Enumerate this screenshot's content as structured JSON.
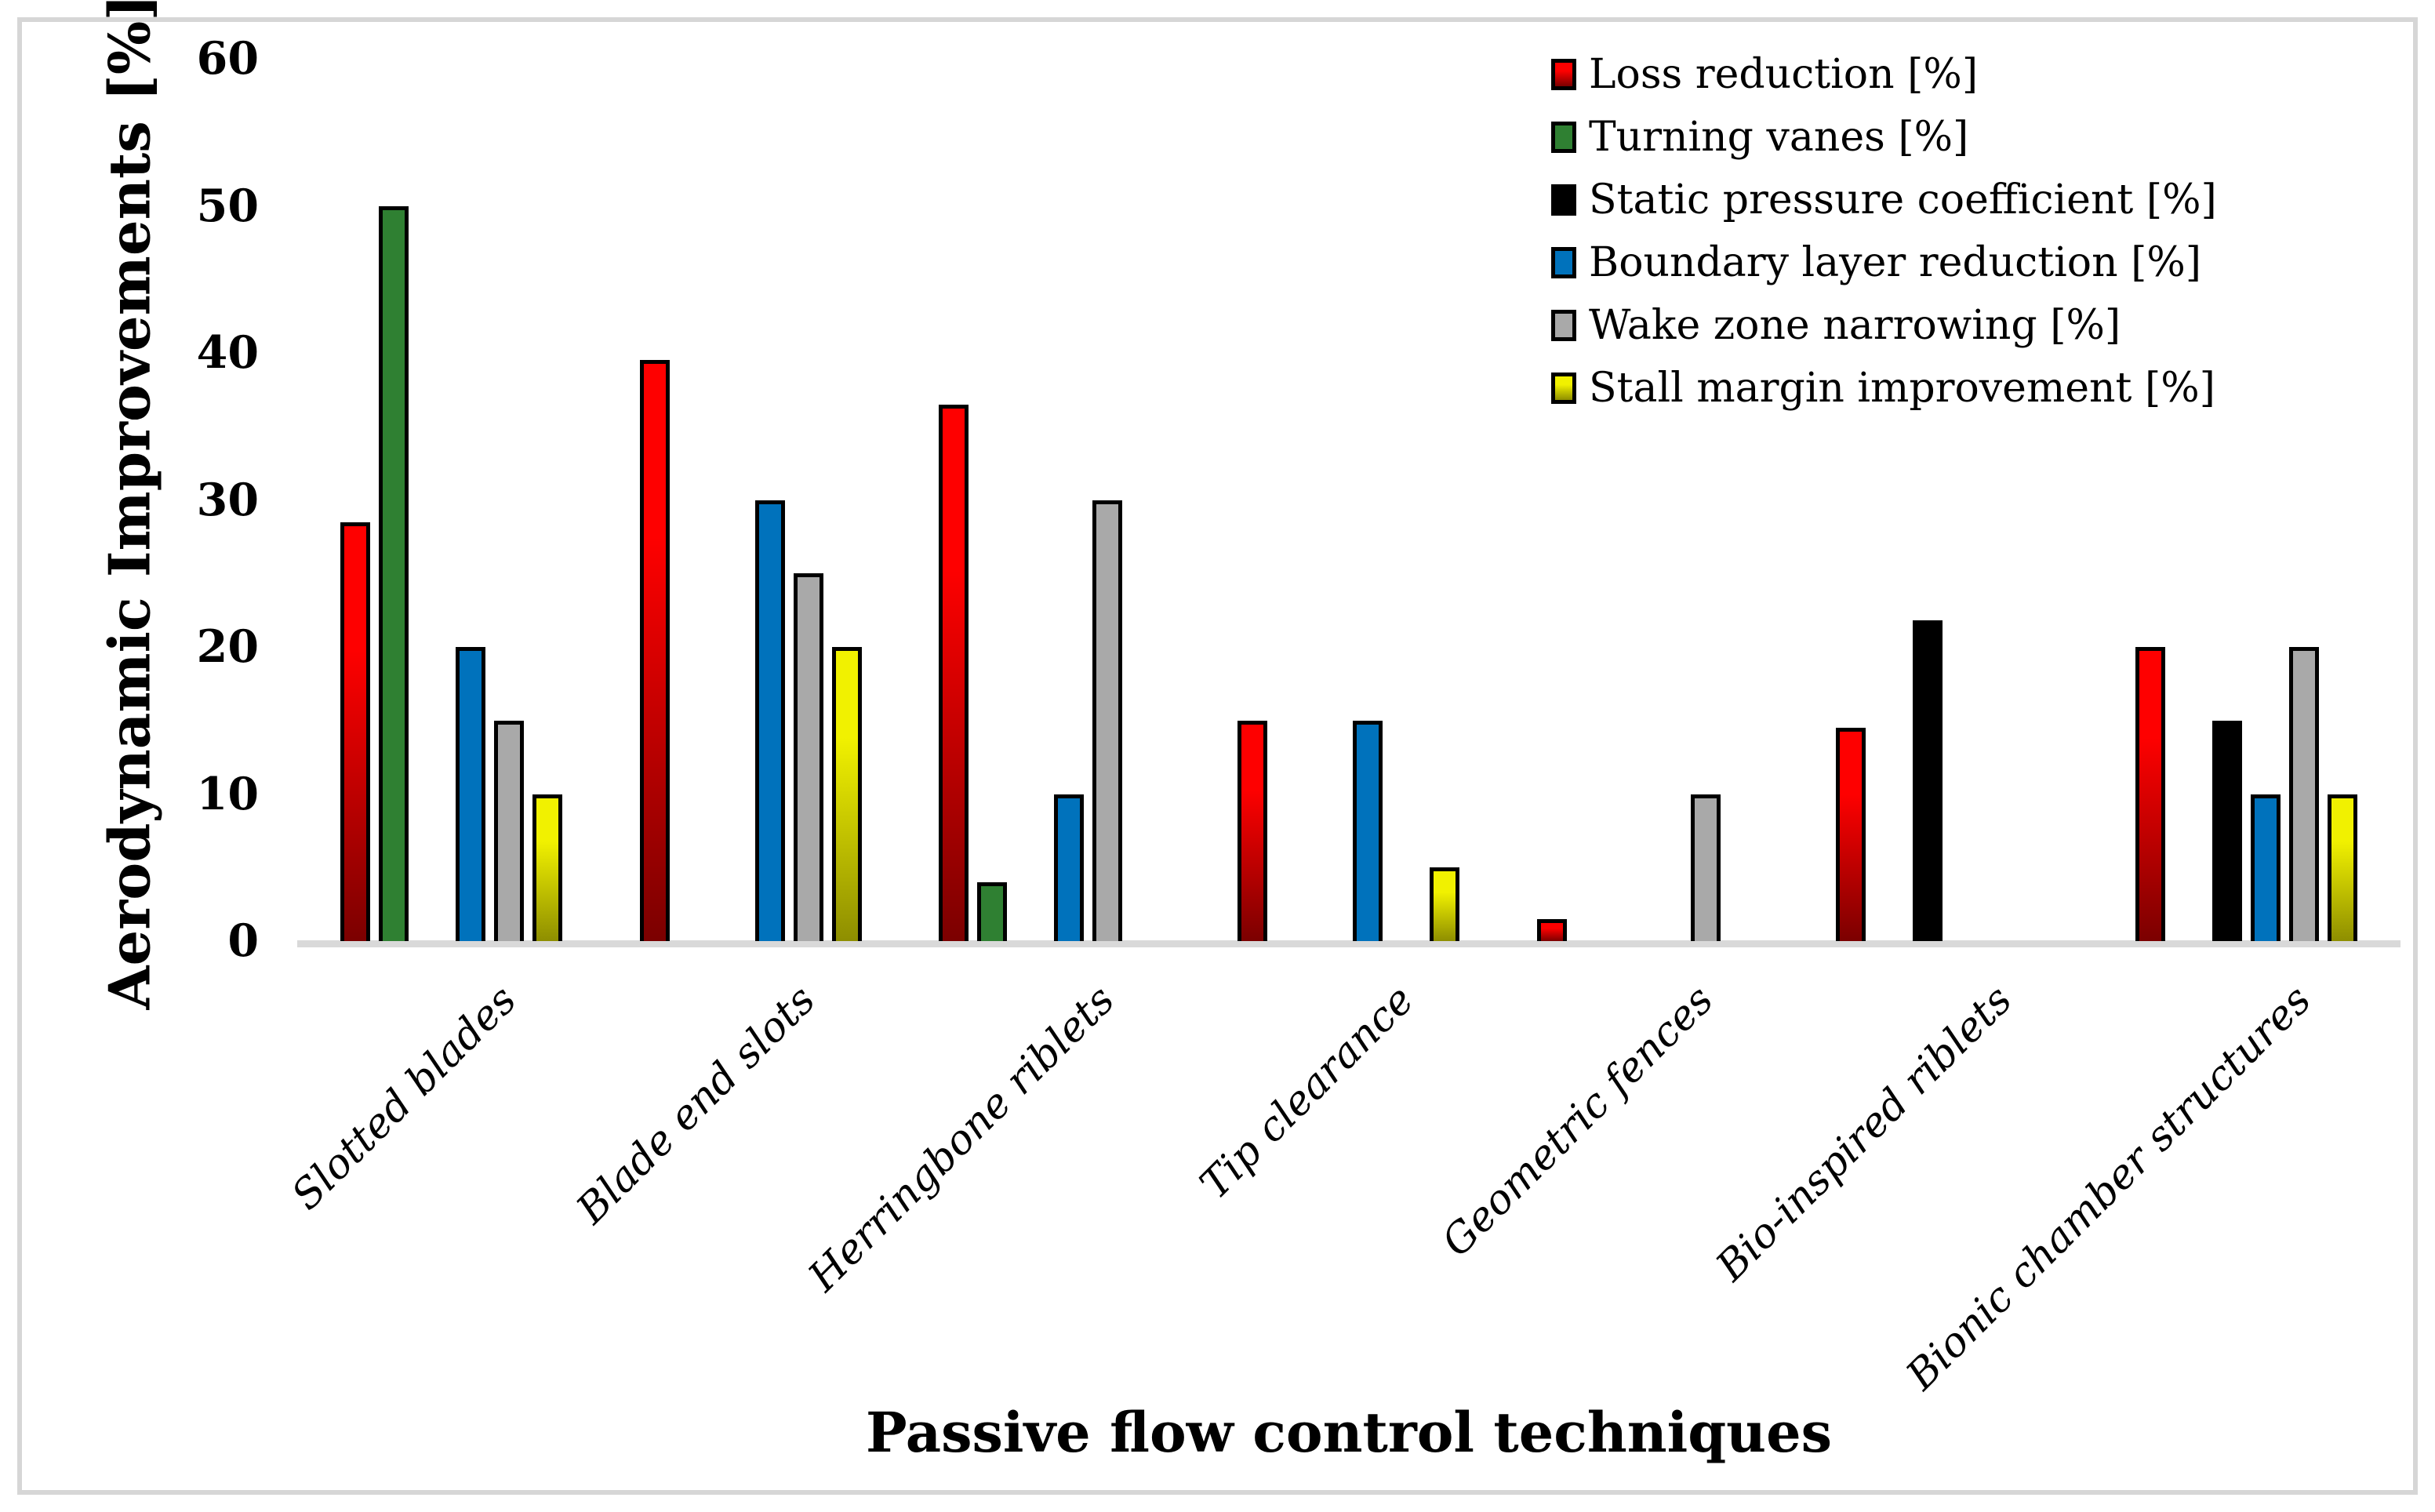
{
  "figure": {
    "background": "#ffffff",
    "frame_border_color": "#d6d6d6",
    "axis_line_color": "#d9d9d9"
  },
  "chart_data": {
    "type": "bar",
    "title": "",
    "xlabel": "Passive flow control techniques",
    "ylabel": "Aerodynamic Improvements [%]",
    "ylim": [
      0,
      60
    ],
    "yticks": [
      0,
      10,
      20,
      30,
      40,
      50,
      60
    ],
    "grid": false,
    "legend_position": "top-right",
    "bar_outline_color": "#000000",
    "categories": [
      "Slotted blades",
      "Blade end slots",
      "Herringbone riblets",
      "Tip clearance",
      "Geometric fences",
      "Bio-inspired riblets",
      "Bionic chamber structures"
    ],
    "series": [
      {
        "name": "Loss reduction [%]",
        "color": "#fe0000",
        "gradient_bottom": "#7b0000",
        "values": [
          28.5,
          39.5,
          36.5,
          15,
          1.5,
          14.5,
          20
        ]
      },
      {
        "name": "Turning vanes [%]",
        "color": "#2f8032",
        "gradient_bottom": null,
        "values": [
          50,
          null,
          4,
          null,
          null,
          null,
          null
        ]
      },
      {
        "name": "Static pressure coefficient [%]",
        "color": "#000000",
        "gradient_bottom": null,
        "values": [
          null,
          null,
          null,
          null,
          null,
          21.8,
          15
        ]
      },
      {
        "name": "Boundary layer reduction [%]",
        "color": "#0072bc",
        "gradient_bottom": null,
        "values": [
          20,
          30,
          10,
          15,
          null,
          null,
          10
        ]
      },
      {
        "name": "Wake zone narrowing [%]",
        "color": "#a9a9a9",
        "gradient_bottom": null,
        "values": [
          15,
          25,
          30,
          null,
          10,
          null,
          20
        ]
      },
      {
        "name": "Stall margin improvement [%]",
        "color": "#f1f100",
        "gradient_bottom": "#8e8e00",
        "values": [
          10,
          20,
          null,
          5,
          null,
          null,
          10
        ]
      }
    ]
  }
}
